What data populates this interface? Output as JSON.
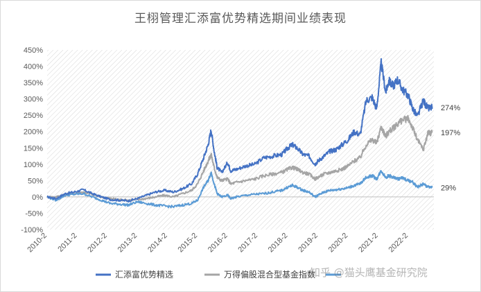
{
  "chart_data": {
    "type": "line",
    "title": "王栩管理汇添富优势精选期间业绩表现",
    "ylim": [
      -100,
      450
    ],
    "yticks": [
      450,
      400,
      350,
      300,
      250,
      200,
      150,
      100,
      50,
      0,
      -50,
      -100
    ],
    "ytick_labels": [
      "450%",
      "400%",
      "350%",
      "300%",
      "250%",
      "200%",
      "150%",
      "100%",
      "50%",
      "0%",
      "-50%",
      "-100%"
    ],
    "xlim": [
      2010.0,
      2022.85
    ],
    "xticks": [
      "2010-2",
      "2011-2",
      "2012-2",
      "2013-2",
      "2014-2",
      "2015-2",
      "2016-2",
      "2017-2",
      "2018-2",
      "2019-2",
      "2020-2",
      "2021-2",
      "2022-2"
    ],
    "grid": false,
    "legend": "bottom",
    "series": [
      {
        "name": "汇添富优势精选",
        "color": "#4472c4",
        "end_label": "274%",
        "x": [
          2010.0,
          2010.3,
          2010.6,
          2010.9,
          2011.2,
          2011.5,
          2011.8,
          2012.1,
          2012.4,
          2012.7,
          2013.0,
          2013.3,
          2013.6,
          2013.9,
          2014.2,
          2014.5,
          2014.8,
          2015.0,
          2015.2,
          2015.35,
          2015.45,
          2015.55,
          2015.65,
          2015.8,
          2016.0,
          2016.1,
          2016.3,
          2016.6,
          2016.9,
          2017.2,
          2017.5,
          2017.8,
          2018.0,
          2018.15,
          2018.3,
          2018.5,
          2018.7,
          2018.9,
          2019.0,
          2019.2,
          2019.4,
          2019.6,
          2019.8,
          2020.0,
          2020.2,
          2020.4,
          2020.6,
          2020.8,
          2020.95,
          2021.1,
          2021.25,
          2021.35,
          2021.5,
          2021.65,
          2021.8,
          2022.0,
          2022.15,
          2022.3,
          2022.5,
          2022.65,
          2022.8
        ],
        "y": [
          0,
          -5,
          10,
          15,
          22,
          10,
          0,
          -8,
          -10,
          -12,
          -5,
          5,
          15,
          20,
          15,
          25,
          40,
          70,
          120,
          160,
          205,
          140,
          90,
          75,
          105,
          80,
          85,
          95,
          100,
          120,
          125,
          130,
          150,
          160,
          150,
          130,
          125,
          100,
          110,
          125,
          140,
          145,
          160,
          175,
          200,
          190,
          295,
          305,
          270,
          410,
          320,
          355,
          340,
          360,
          330,
          310,
          270,
          245,
          295,
          270,
          274
        ]
      },
      {
        "name": "万得偏股混合型基金指数",
        "color": "#a5a5a5",
        "end_label": "197%",
        "x": [
          2010.0,
          2010.3,
          2010.6,
          2010.9,
          2011.2,
          2011.5,
          2011.8,
          2012.1,
          2012.4,
          2012.7,
          2013.0,
          2013.3,
          2013.6,
          2013.9,
          2014.2,
          2014.5,
          2014.8,
          2015.0,
          2015.2,
          2015.35,
          2015.45,
          2015.55,
          2015.65,
          2015.8,
          2016.0,
          2016.1,
          2016.3,
          2016.6,
          2016.9,
          2017.2,
          2017.5,
          2017.8,
          2018.0,
          2018.15,
          2018.3,
          2018.5,
          2018.7,
          2018.9,
          2019.0,
          2019.2,
          2019.4,
          2019.6,
          2019.8,
          2020.0,
          2020.2,
          2020.4,
          2020.6,
          2020.8,
          2020.95,
          2021.1,
          2021.25,
          2021.35,
          2021.5,
          2021.65,
          2021.8,
          2022.0,
          2022.15,
          2022.3,
          2022.5,
          2022.65,
          2022.8
        ],
        "y": [
          0,
          0,
          8,
          10,
          15,
          8,
          0,
          -5,
          -8,
          -10,
          -8,
          -5,
          0,
          5,
          0,
          10,
          20,
          40,
          80,
          110,
          130,
          90,
          60,
          50,
          55,
          40,
          45,
          50,
          55,
          65,
          70,
          75,
          85,
          90,
          85,
          75,
          70,
          55,
          60,
          70,
          75,
          80,
          85,
          95,
          110,
          120,
          160,
          175,
          165,
          215,
          185,
          200,
          210,
          225,
          235,
          240,
          210,
          175,
          145,
          195,
          197
        ]
      },
      {
        "name": "",
        "color": "#5b9bd5",
        "end_label": "29%",
        "x": [
          2010.0,
          2010.3,
          2010.6,
          2010.9,
          2011.2,
          2011.5,
          2011.8,
          2012.1,
          2012.4,
          2012.7,
          2013.0,
          2013.3,
          2013.6,
          2013.9,
          2014.2,
          2014.5,
          2014.8,
          2015.0,
          2015.2,
          2015.35,
          2015.45,
          2015.55,
          2015.65,
          2015.8,
          2016.0,
          2016.1,
          2016.3,
          2016.6,
          2016.9,
          2017.2,
          2017.5,
          2017.8,
          2018.0,
          2018.15,
          2018.3,
          2018.5,
          2018.7,
          2018.9,
          2019.0,
          2019.2,
          2019.4,
          2019.6,
          2019.8,
          2020.0,
          2020.2,
          2020.4,
          2020.6,
          2020.8,
          2020.95,
          2021.1,
          2021.25,
          2021.35,
          2021.5,
          2021.65,
          2021.8,
          2022.0,
          2022.15,
          2022.3,
          2022.5,
          2022.65,
          2022.8
        ],
        "y": [
          0,
          -10,
          5,
          8,
          10,
          0,
          -10,
          -20,
          -22,
          -25,
          -15,
          -20,
          -25,
          -28,
          -30,
          -25,
          -20,
          -10,
          30,
          50,
          75,
          40,
          10,
          0,
          5,
          -5,
          0,
          5,
          8,
          10,
          15,
          20,
          30,
          35,
          30,
          20,
          15,
          0,
          5,
          15,
          20,
          22,
          25,
          28,
          35,
          40,
          60,
          65,
          55,
          80,
          60,
          65,
          60,
          55,
          58,
          50,
          45,
          30,
          40,
          30,
          29
        ]
      }
    ]
  },
  "watermark": "知乎 @猫头鹰基金研究院"
}
